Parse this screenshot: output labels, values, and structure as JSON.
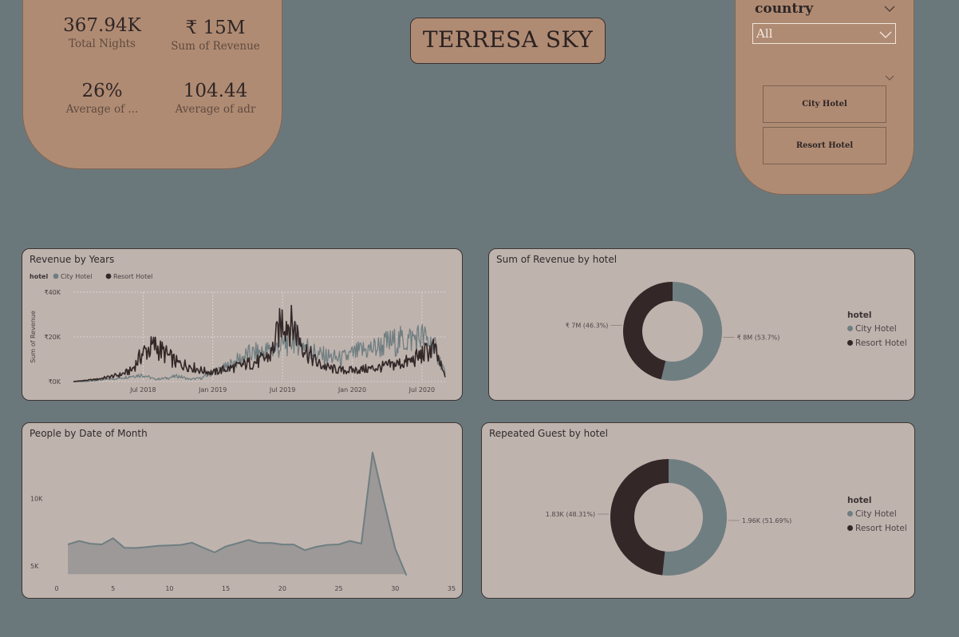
{
  "kpis": [
    {
      "value": "367.94K",
      "label": "Total Nights"
    },
    {
      "value": "₹ 15M",
      "label": "Sum of Revenue"
    },
    {
      "value": "26%",
      "label": "Average of ..."
    },
    {
      "value": "104.44",
      "label": "Average of adr"
    }
  ],
  "title": "TERRESA SKY",
  "slicer": {
    "title": "country",
    "selected": "All",
    "tiles": [
      "City Hotel",
      "Resort Hotel"
    ]
  },
  "colors": {
    "city": "#6f7e81",
    "resort": "#332727",
    "panel": "#bfb3ae",
    "card": "#b08b73",
    "background": "#6b787b"
  },
  "chart_data": [
    {
      "type": "line",
      "title": "Revenue by Years",
      "ylabel": "Sum of Revenue",
      "legend_title": "hotel",
      "legend_position": "top-left",
      "x_ticks": [
        "Jul 2018",
        "Jan 2019",
        "Jul 2019",
        "Jan 2020",
        "Jul 2020"
      ],
      "y_ticks": [
        "₹40K",
        "₹20K",
        "₹0K"
      ],
      "ylim": [
        0,
        40000
      ],
      "grid": true,
      "x_range": [
        "2018-01",
        "2020-09"
      ],
      "series": [
        {
          "name": "City Hotel",
          "color": "#6f7e81",
          "x": [
            "2018-01",
            "2018-02",
            "2018-03",
            "2018-04",
            "2018-05",
            "2018-06",
            "2018-07",
            "2018-08",
            "2018-09",
            "2018-10",
            "2018-11",
            "2018-12",
            "2019-01",
            "2019-02",
            "2019-03",
            "2019-04",
            "2019-05",
            "2019-06",
            "2019-07",
            "2019-08",
            "2019-09",
            "2019-10",
            "2019-11",
            "2019-12",
            "2020-01",
            "2020-02",
            "2020-03",
            "2020-04",
            "2020-05",
            "2020-06",
            "2020-07",
            "2020-08",
            "2020-09"
          ],
          "values": [
            0,
            0,
            500,
            1000,
            1500,
            2500,
            3000,
            1000,
            1500,
            2500,
            1000,
            1500,
            4000,
            6000,
            9000,
            12000,
            13000,
            14000,
            16000,
            20000,
            16000,
            12000,
            11000,
            10000,
            12000,
            14000,
            15000,
            17000,
            18000,
            19000,
            20000,
            16000,
            4000
          ]
        },
        {
          "name": "Resort Hotel",
          "color": "#332727",
          "x": [
            "2018-01",
            "2018-02",
            "2018-03",
            "2018-04",
            "2018-05",
            "2018-06",
            "2018-07",
            "2018-08",
            "2018-09",
            "2018-10",
            "2018-11",
            "2018-12",
            "2019-01",
            "2019-02",
            "2019-03",
            "2019-04",
            "2019-05",
            "2019-06",
            "2019-07",
            "2019-08",
            "2019-09",
            "2019-10",
            "2019-11",
            "2019-12",
            "2020-01",
            "2020-02",
            "2020-03",
            "2020-04",
            "2020-05",
            "2020-06",
            "2020-07",
            "2020-08",
            "2020-09"
          ],
          "values": [
            0,
            500,
            1000,
            2000,
            3000,
            5000,
            13000,
            16000,
            12000,
            8000,
            7000,
            5000,
            4000,
            5500,
            6500,
            8000,
            9000,
            12000,
            28000,
            24000,
            14000,
            8000,
            6000,
            5000,
            5000,
            5500,
            6000,
            7000,
            8000,
            9000,
            12000,
            15000,
            2000
          ]
        }
      ]
    },
    {
      "type": "pie",
      "title": "Sum of Revenue by hotel",
      "legend_title": "hotel",
      "legend_position": "right",
      "labels": [
        "City Hotel",
        "Resort Hotel"
      ],
      "values": [
        53.7,
        46.3
      ],
      "data_labels": [
        "₹ 8M (53.7%)",
        "₹ 7M (46.3%)"
      ],
      "colors": [
        "#6f7e81",
        "#332727"
      ]
    },
    {
      "type": "area",
      "title": "People by Date of Month",
      "x_ticks": [
        "0",
        "5",
        "10",
        "15",
        "20",
        "25",
        "30",
        "35"
      ],
      "y_ticks": [
        "10K",
        "5K"
      ],
      "xlim": [
        0,
        35
      ],
      "ylim": [
        4000,
        13800
      ],
      "x": [
        1,
        2,
        3,
        4,
        5,
        6,
        7,
        8,
        9,
        10,
        11,
        12,
        13,
        14,
        15,
        16,
        17,
        18,
        19,
        20,
        21,
        22,
        23,
        24,
        25,
        26,
        27,
        28,
        29,
        30,
        31
      ],
      "values": [
        6600,
        6850,
        6650,
        6600,
        7050,
        6350,
        6330,
        6400,
        6500,
        6520,
        6560,
        6720,
        6350,
        6010,
        6450,
        6680,
        6930,
        6700,
        6710,
        6590,
        6590,
        6170,
        6420,
        6560,
        6600,
        6860,
        6650,
        13400,
        9800,
        6300,
        4300
      ],
      "color": "#6f7e81"
    },
    {
      "type": "pie",
      "title": "Repeated Guest by hotel",
      "legend_title": "hotel",
      "legend_position": "right",
      "labels": [
        "City Hotel",
        "Resort Hotel"
      ],
      "values": [
        51.69,
        48.31
      ],
      "data_labels": [
        "1.96K (51.69%)",
        "1.83K (48.31%)"
      ],
      "colors": [
        "#6f7e81",
        "#332727"
      ]
    }
  ]
}
